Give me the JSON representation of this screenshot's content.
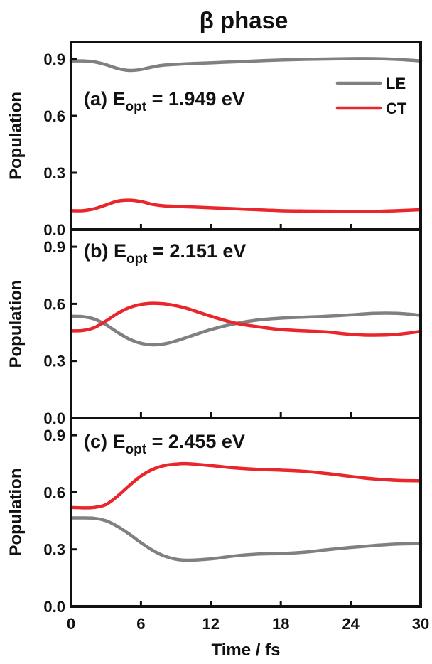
{
  "chart_data": {
    "type": "line",
    "title": "β phase",
    "xlabel": "Time / fs",
    "xlim": [
      0,
      30
    ],
    "xticks": [
      "0",
      "6",
      "12",
      "18",
      "24",
      "30"
    ],
    "shared_x": true,
    "grid": false,
    "legend": {
      "placement": "top-right",
      "entries": [
        "LE",
        "CT"
      ]
    },
    "colors": {
      "LE": "#808080",
      "CT": "#e8262b"
    },
    "panels": [
      {
        "label": "(a)",
        "annotation": {
          "prefix": "(a) E",
          "sub": "opt",
          "suffix": " = 1.949 eV"
        },
        "ylabel": "Population",
        "ylim": [
          0,
          0.99
        ],
        "yticks": [
          "0.0",
          "0.3",
          "0.6",
          "0.9"
        ],
        "series": [
          {
            "name": "LE",
            "x": [
              0,
              1,
              2,
              3,
              4,
              5,
              6,
              7,
              8,
              10,
              12,
              14,
              16,
              18,
              20,
              22,
              24,
              26,
              28,
              30
            ],
            "y": [
              0.89,
              0.89,
              0.885,
              0.87,
              0.85,
              0.84,
              0.845,
              0.858,
              0.868,
              0.875,
              0.88,
              0.885,
              0.89,
              0.895,
              0.898,
              0.9,
              0.902,
              0.902,
              0.898,
              0.89
            ]
          },
          {
            "name": "CT",
            "x": [
              0,
              1,
              2,
              3,
              4,
              5,
              6,
              7,
              8,
              10,
              12,
              14,
              16,
              18,
              20,
              22,
              24,
              26,
              28,
              30
            ],
            "y": [
              0.1,
              0.1,
              0.11,
              0.13,
              0.15,
              0.155,
              0.148,
              0.133,
              0.125,
              0.12,
              0.115,
              0.11,
              0.105,
              0.1,
              0.098,
              0.097,
              0.096,
              0.096,
              0.1,
              0.105
            ]
          }
        ]
      },
      {
        "label": "(b)",
        "annotation": {
          "prefix": "(b) E",
          "sub": "opt",
          "suffix": " = 2.151 eV"
        },
        "ylabel": "Population",
        "ylim": [
          0,
          0.99
        ],
        "yticks": [
          "0.0",
          "0.3",
          "0.6",
          "0.9"
        ],
        "series": [
          {
            "name": "LE",
            "x": [
              0,
              1,
              2,
              3,
              4,
              5,
              6,
              7,
              8,
              9,
              10,
              12,
              14,
              16,
              18,
              20,
              22,
              24,
              26,
              28,
              30
            ],
            "y": [
              0.535,
              0.533,
              0.52,
              0.49,
              0.45,
              0.415,
              0.393,
              0.385,
              0.39,
              0.405,
              0.425,
              0.465,
              0.495,
              0.515,
              0.525,
              0.53,
              0.535,
              0.542,
              0.55,
              0.55,
              0.54
            ]
          },
          {
            "name": "CT",
            "x": [
              0,
              1,
              2,
              3,
              4,
              5,
              6,
              7,
              8,
              9,
              10,
              12,
              14,
              16,
              18,
              20,
              22,
              24,
              26,
              28,
              30
            ],
            "y": [
              0.458,
              0.46,
              0.475,
              0.51,
              0.55,
              0.58,
              0.597,
              0.603,
              0.6,
              0.59,
              0.575,
              0.535,
              0.5,
              0.48,
              0.465,
              0.458,
              0.452,
              0.44,
              0.435,
              0.44,
              0.455
            ]
          }
        ]
      },
      {
        "label": "(c)",
        "annotation": {
          "prefix": "(c) E",
          "sub": "opt",
          "suffix": " = 2.455 eV"
        },
        "ylabel": "Population",
        "ylim": [
          0,
          0.99
        ],
        "yticks": [
          "0.0",
          "0.3",
          "0.6",
          "0.9"
        ],
        "series": [
          {
            "name": "LE",
            "x": [
              0,
              1,
              2,
              3,
              4,
              5,
              6,
              7,
              8,
              9,
              10,
              12,
              14,
              16,
              18,
              20,
              22,
              24,
              26,
              28,
              30
            ],
            "y": [
              0.465,
              0.465,
              0.463,
              0.45,
              0.42,
              0.38,
              0.335,
              0.295,
              0.265,
              0.248,
              0.243,
              0.25,
              0.265,
              0.275,
              0.278,
              0.285,
              0.298,
              0.31,
              0.32,
              0.328,
              0.33
            ]
          },
          {
            "name": "CT",
            "x": [
              0,
              1,
              2,
              3,
              4,
              5,
              6,
              7,
              8,
              9,
              10,
              12,
              14,
              16,
              18,
              20,
              22,
              24,
              26,
              28,
              30
            ],
            "y": [
              0.52,
              0.518,
              0.52,
              0.535,
              0.58,
              0.635,
              0.685,
              0.72,
              0.74,
              0.748,
              0.75,
              0.74,
              0.728,
              0.72,
              0.716,
              0.71,
              0.698,
              0.683,
              0.67,
              0.662,
              0.66
            ]
          }
        ]
      }
    ]
  }
}
